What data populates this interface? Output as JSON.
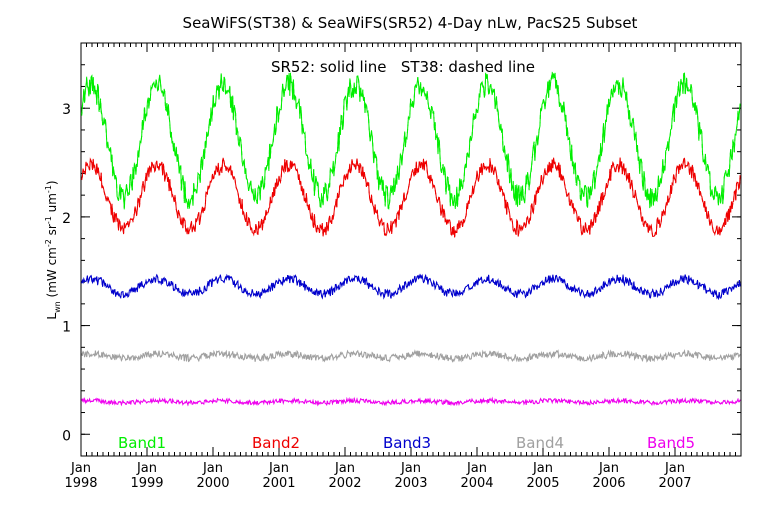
{
  "chart_data": {
    "type": "line",
    "title": "SeaWiFS(ST38) & SeaWiFS(SR52) 4-Day nLw, PacS25 Subset",
    "annotation": "SR52: solid line   ST38: dashed line",
    "ylabel": "L_wn (mW cm^-2 sr^-1 um^-1)",
    "ylabel_parts": {
      "main": "L",
      "sub": "wn",
      "unit_open": " (mW cm",
      "exp1": "-2",
      "mid1": " sr",
      "exp2": "-1",
      "mid2": " um",
      "exp3": "-1",
      "unit_close": ")"
    },
    "xlim": [
      1998.0,
      2008.0
    ],
    "ylim": [
      -0.2,
      3.6
    ],
    "yticks": [
      0,
      1,
      2,
      3
    ],
    "ytick_labels": [
      "0",
      "1",
      "2",
      "3"
    ],
    "xticks": [
      1998,
      1999,
      2000,
      2001,
      2002,
      2003,
      2004,
      2005,
      2006,
      2007
    ],
    "xtick_month": "Jan",
    "xtick_years": [
      "1998",
      "1999",
      "2000",
      "2001",
      "2002",
      "2003",
      "2004",
      "2005",
      "2006",
      "2007"
    ],
    "series": [
      {
        "name": "Band1",
        "color": "#00ee00",
        "mean": 2.7,
        "amp": 0.52,
        "noise": 0.11
      },
      {
        "name": "Band2",
        "color": "#ee0000",
        "mean": 2.18,
        "amp": 0.3,
        "noise": 0.07
      },
      {
        "name": "Band3",
        "color": "#0000cc",
        "mean": 1.36,
        "amp": 0.07,
        "noise": 0.04
      },
      {
        "name": "Band4",
        "color": "#a0a0a0",
        "mean": 0.72,
        "amp": 0.02,
        "noise": 0.03
      },
      {
        "name": "Band5",
        "color": "#ee00ee",
        "mean": 0.3,
        "amp": 0.01,
        "noise": 0.02
      }
    ],
    "phase_peak_year_fraction": 0.15,
    "grid": false,
    "legend_placement": "bottom"
  }
}
